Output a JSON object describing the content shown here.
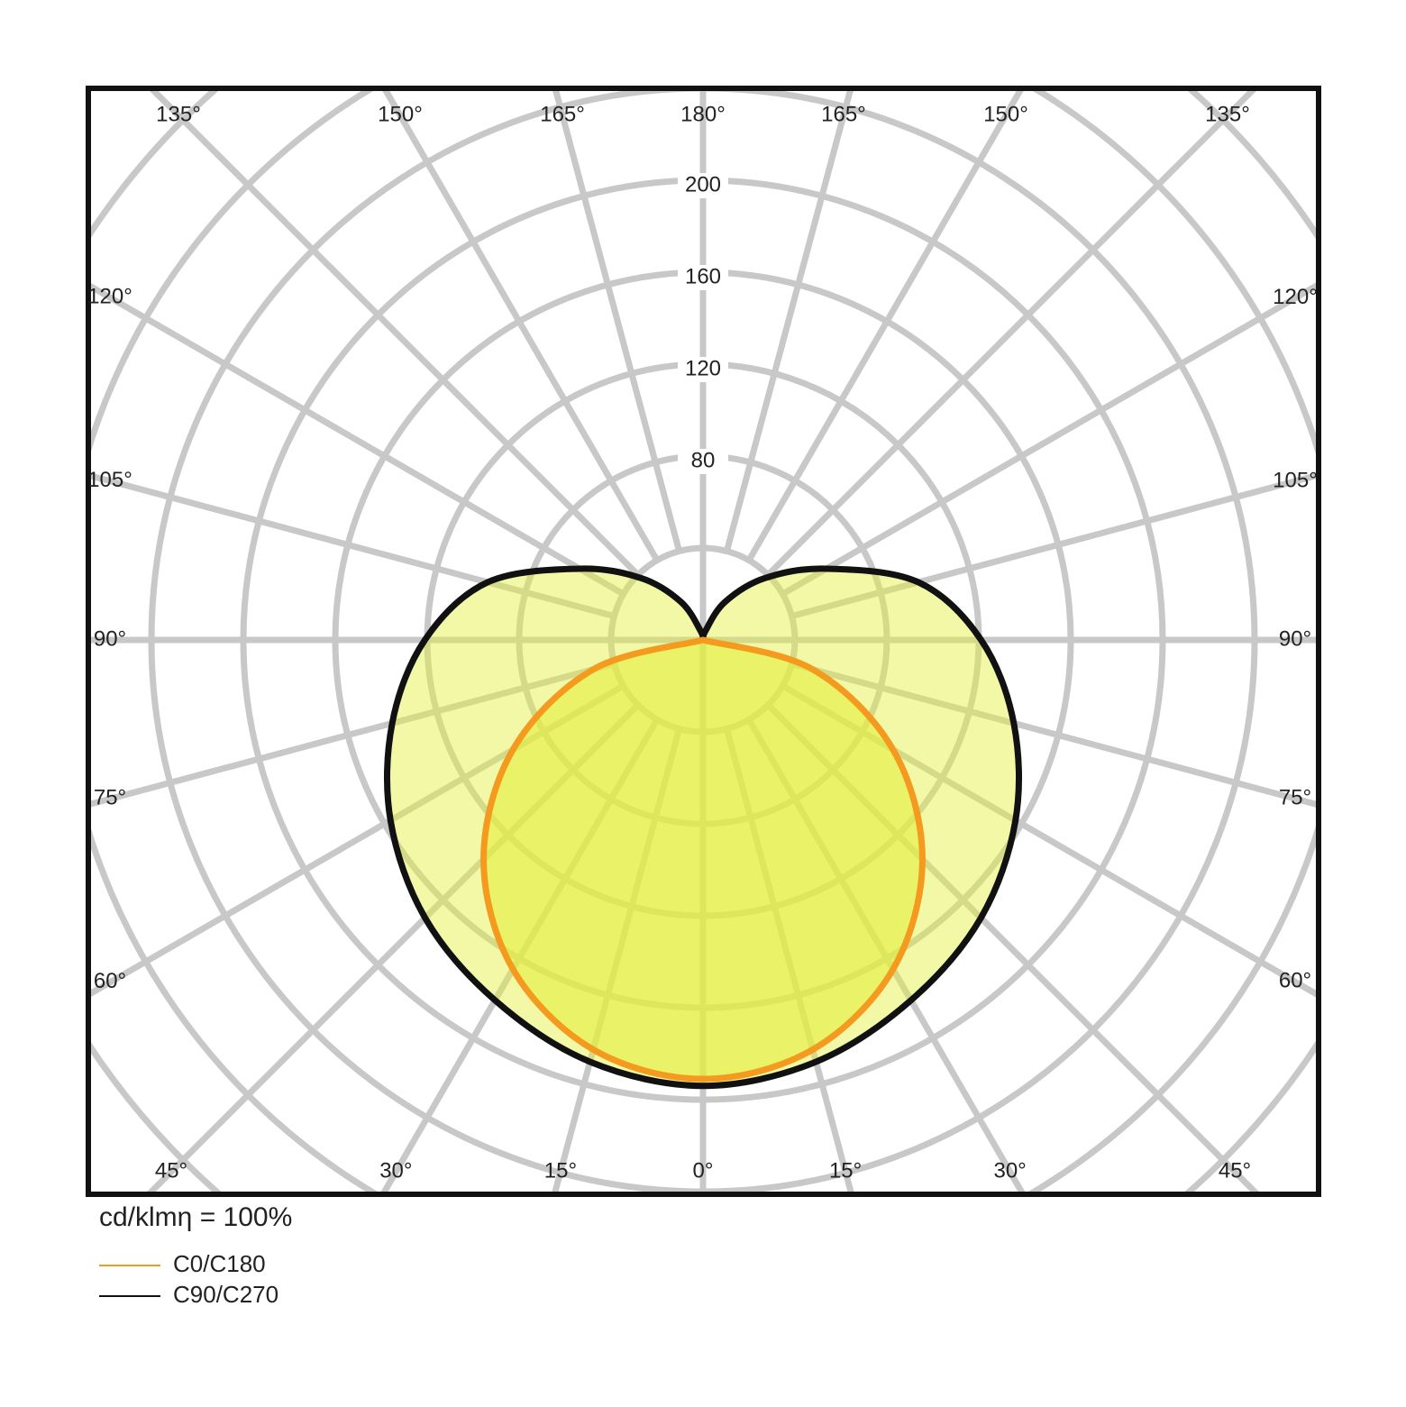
{
  "chart_data": {
    "type": "polar",
    "rlim": [
      0,
      360
    ],
    "rgrid": [
      40,
      80,
      120,
      160,
      200,
      240,
      280,
      320,
      360
    ],
    "rticks": [
      80,
      120,
      160,
      200
    ],
    "angle_ticks": [
      {
        "value": -45,
        "label": "45°"
      },
      {
        "value": -30,
        "label": "30°"
      },
      {
        "value": -15,
        "label": "15°"
      },
      {
        "value": 0,
        "label": "0°"
      },
      {
        "value": 15,
        "label": "15°"
      },
      {
        "value": 30,
        "label": "30°"
      },
      {
        "value": 45,
        "label": "45°"
      },
      {
        "value": -60,
        "label": "60°"
      },
      {
        "value": -75,
        "label": "75°"
      },
      {
        "value": -90,
        "label": "90°"
      },
      {
        "value": -105,
        "label": "105°"
      },
      {
        "value": -120,
        "label": "120°"
      },
      {
        "value": 60,
        "label": "60°"
      },
      {
        "value": 75,
        "label": "75°"
      },
      {
        "value": 90,
        "label": "90°"
      },
      {
        "value": 105,
        "label": "105°"
      },
      {
        "value": 120,
        "label": "120°"
      },
      {
        "value": -135,
        "label": "135°"
      },
      {
        "value": -150,
        "label": "150°"
      },
      {
        "value": -165,
        "label": "165°"
      },
      {
        "value": 180,
        "label": "180°"
      },
      {
        "value": 165,
        "label": "165°"
      },
      {
        "value": 150,
        "label": "150°"
      },
      {
        "value": 135,
        "label": "135°"
      }
    ],
    "annotation": "cd/klmη = 100%",
    "series": [
      {
        "name": "C90/C270",
        "color": "#111111",
        "fill": "rgba(228,240,60,0.45)",
        "x": [
          -180,
          -165,
          -150,
          -135,
          -120,
          -105,
          -90,
          -75,
          -60,
          -45,
          -30,
          -15,
          0,
          15,
          30,
          45,
          60,
          75,
          90,
          105,
          120,
          135,
          150,
          165,
          180
        ],
        "values": [
          0,
          4,
          19,
          38,
          62,
          97,
          121,
          140,
          157,
          171,
          181,
          190,
          194,
          190,
          181,
          171,
          157,
          140,
          121,
          97,
          62,
          38,
          19,
          4,
          0
        ]
      },
      {
        "name": "C0/C180",
        "color": "#f39a1f",
        "fill": "rgba(228,238,60,0.6)",
        "x": [
          -90,
          -75,
          -60,
          -45,
          -30,
          -15,
          0,
          15,
          30,
          45,
          60,
          75,
          90
        ],
        "values": [
          0,
          49.4,
          95.5,
          135,
          165.4,
          184.5,
          191,
          184.5,
          165.4,
          135,
          95.5,
          49.4,
          0
        ]
      }
    ]
  }
}
